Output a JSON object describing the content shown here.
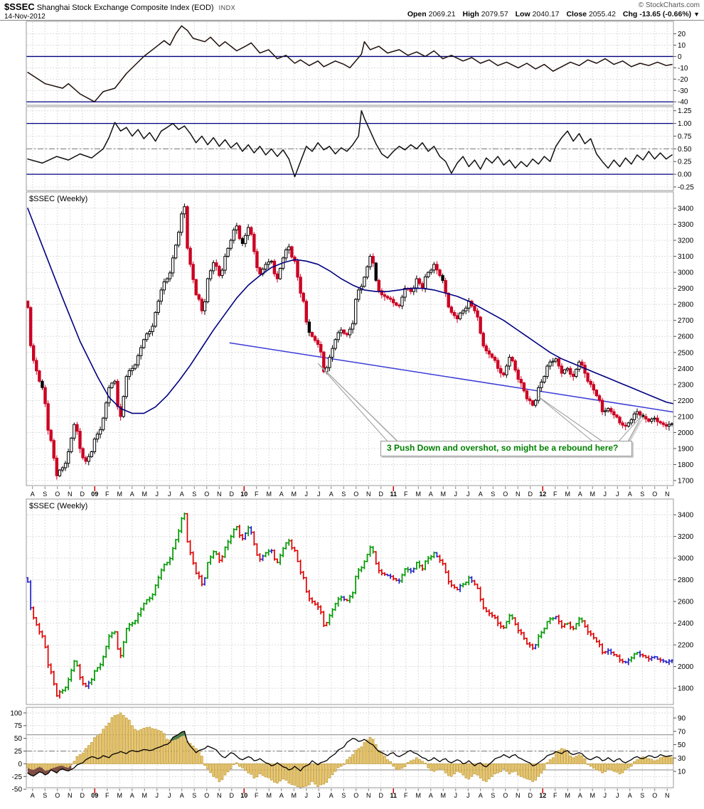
{
  "header": {
    "symbol": "$SSEC",
    "title": "Shanghai Stock Exchange Composite Index (EOD)",
    "exchange": "INDX",
    "date": "14-Nov-2012",
    "copyright": "© StockCharts.com",
    "quote": {
      "open_label": "Open",
      "open": "2069.21",
      "high_label": "High",
      "high": "2079.57",
      "low_label": "Low",
      "low": "2040.17",
      "close_label": "Close",
      "close": "2055.42",
      "chg_label": "Chg",
      "chg": "-13.65 (-0.66%)",
      "dropdown": "▼"
    }
  },
  "axis": {
    "months": [
      "A",
      "S",
      "O",
      "N",
      "D",
      "09",
      "F",
      "M",
      "A",
      "M",
      "J",
      "J",
      "A",
      "S",
      "O",
      "N",
      "D",
      "10",
      "F",
      "M",
      "A",
      "M",
      "J",
      "J",
      "A",
      "S",
      "O",
      "N",
      "D",
      "11",
      "F",
      "M",
      "A",
      "M",
      "J",
      "J",
      "A",
      "S",
      "O",
      "N",
      "D",
      "12",
      "F",
      "M",
      "A",
      "M",
      "J",
      "J",
      "A",
      "S",
      "O",
      "N"
    ],
    "year_idx": [
      5,
      17,
      29,
      41
    ]
  },
  "colors": {
    "candle_up": "#ffffff",
    "candle_down": "#cc0022",
    "candle_stroke": "#000000",
    "ma_line": "#000080",
    "trendline": "#3c3cd8",
    "ref_line": "#000080",
    "elder_up": "#009900",
    "elder_down": "#dd0000",
    "elder_neutral": "#2222cc",
    "hist_fill": "#edcb71",
    "hist_stroke": "#bf9a3a",
    "green_fill": "#4d7d4d",
    "red_fill": "#7d4d44",
    "osc1_line": "#1d0f0a",
    "osc2_line": "#111111",
    "breadth_line": "#000000",
    "annotation_green": "#008000",
    "chg_red": "#990000"
  },
  "chart_data": [
    {
      "id": "panel1-oscillator",
      "type": "line",
      "ylim": [
        -43,
        31
      ],
      "ticks": [
        20,
        10,
        0,
        -10,
        -20,
        -30,
        -40
      ],
      "tick_labels": [
        "20",
        "10",
        "0",
        "-10",
        "-20",
        "-30",
        "-40"
      ],
      "hlines": [
        0,
        -40
      ],
      "x": [
        0,
        6,
        12,
        14,
        18,
        23,
        26,
        30,
        34,
        40,
        44,
        47,
        49,
        51,
        53,
        55,
        57,
        61,
        63,
        66,
        68,
        72,
        75,
        77,
        80,
        83,
        86,
        89,
        92,
        94,
        97,
        100,
        102,
        106,
        109,
        111,
        115,
        116,
        118,
        121,
        124,
        128,
        131,
        134,
        137,
        140,
        143,
        146,
        150,
        153,
        156,
        159,
        162,
        165,
        169,
        172,
        175,
        178,
        181,
        184,
        187,
        190,
        193,
        196,
        199,
        202,
        205,
        208,
        211,
        214,
        217,
        220,
        222
      ],
      "y": [
        -14,
        -24,
        -28,
        -24,
        -33,
        -40,
        -31,
        -28,
        -15,
        0,
        8,
        14,
        10,
        20,
        27,
        23,
        16,
        13,
        17,
        9,
        13,
        5,
        9,
        12,
        3,
        6,
        -2,
        1,
        -6,
        -3,
        -8,
        -4,
        -9,
        -4,
        -7,
        -10,
        2,
        13,
        6,
        9,
        3,
        6,
        1,
        4,
        0,
        5,
        -2,
        1,
        -4,
        -1,
        -6,
        -3,
        -8,
        -5,
        -10,
        -6,
        -11,
        -7,
        -13,
        -9,
        -5,
        -8,
        -3,
        -6,
        -2,
        -7,
        -4,
        -9,
        -6,
        -8,
        -5,
        -8,
        -7
      ]
    },
    {
      "id": "panel2-oscillator",
      "type": "line",
      "ylim": [
        -0.32,
        1.33
      ],
      "ticks": [
        1.25,
        1.0,
        0.75,
        0.5,
        0.25,
        0.0,
        -0.25
      ],
      "tick_labels": [
        "1.25",
        "1.00",
        "0.75",
        "0.50",
        "0.25",
        "0.00",
        "-0.25"
      ],
      "hlines": [
        1.0,
        0.0
      ],
      "dashdot": [
        0.5
      ],
      "x": [
        0,
        5,
        10,
        14,
        18,
        22,
        26,
        28,
        30,
        32,
        34,
        36,
        38,
        40,
        42,
        44,
        46,
        48,
        50,
        52,
        54,
        56,
        58,
        60,
        62,
        64,
        66,
        68,
        70,
        72,
        74,
        76,
        78,
        80,
        82,
        84,
        86,
        88,
        90,
        92,
        94,
        96,
        98,
        100,
        102,
        104,
        106,
        108,
        110,
        112,
        114,
        115,
        116,
        118,
        120,
        122,
        124,
        126,
        128,
        130,
        132,
        134,
        136,
        138,
        140,
        142,
        144,
        146,
        148,
        150,
        152,
        154,
        156,
        158,
        160,
        162,
        164,
        166,
        168,
        170,
        172,
        174,
        176,
        178,
        180,
        182,
        184,
        186,
        188,
        190,
        192,
        194,
        196,
        198,
        200,
        202,
        204,
        206,
        208,
        210,
        212,
        214,
        216,
        218,
        220,
        222
      ],
      "y": [
        0.3,
        0.22,
        0.35,
        0.28,
        0.4,
        0.32,
        0.5,
        0.72,
        1.02,
        0.85,
        0.92,
        0.75,
        0.88,
        0.7,
        0.82,
        0.65,
        0.85,
        0.92,
        1.0,
        0.88,
        0.95,
        0.8,
        0.62,
        0.75,
        0.58,
        0.72,
        0.55,
        0.68,
        0.52,
        0.62,
        0.45,
        0.58,
        0.42,
        0.55,
        0.38,
        0.5,
        0.35,
        0.48,
        0.3,
        -0.05,
        0.25,
        0.55,
        0.45,
        0.62,
        0.48,
        0.55,
        0.4,
        0.52,
        0.45,
        0.58,
        0.75,
        1.25,
        1.1,
        0.85,
        0.6,
        0.4,
        0.32,
        0.45,
        0.55,
        0.48,
        0.58,
        0.5,
        0.62,
        0.45,
        0.55,
        0.35,
        0.25,
        0.02,
        0.22,
        0.35,
        0.15,
        0.28,
        0.1,
        0.32,
        0.22,
        0.35,
        0.18,
        0.28,
        0.12,
        0.25,
        0.15,
        0.3,
        0.2,
        0.35,
        0.25,
        0.55,
        0.72,
        0.85,
        0.65,
        0.8,
        0.6,
        0.7,
        0.4,
        0.25,
        0.12,
        0.28,
        0.15,
        0.32,
        0.2,
        0.38,
        0.28,
        0.45,
        0.3,
        0.42,
        0.3,
        0.38
      ]
    },
    {
      "id": "main-price-chart",
      "type": "candlestick",
      "label": "$SSEC (Weekly)",
      "ylim": [
        1669,
        3502
      ],
      "ticks": [
        3400,
        3300,
        3200,
        3100,
        3000,
        2900,
        2800,
        2700,
        2600,
        2500,
        2400,
        2300,
        2200,
        2100,
        2000,
        1900,
        1800,
        1700
      ],
      "tick_labels": [
        "3400",
        "3300",
        "3200",
        "3100",
        "3000",
        "2900",
        "2800",
        "2700",
        "2600",
        "2500",
        "2400",
        "2300",
        "2200",
        "2100",
        "2000",
        "1900",
        "1800",
        "1700"
      ],
      "closes_biweekly": [
        2780,
        2450,
        2320,
        2180,
        1950,
        1730,
        1780,
        1880,
        2050,
        1900,
        1820,
        1880,
        1990,
        2090,
        2280,
        2320,
        2100,
        2350,
        2400,
        2480,
        2580,
        2630,
        2750,
        2890,
        2960,
        3090,
        3250,
        3410,
        3050,
        2860,
        2760,
        2960,
        3060,
        2980,
        3100,
        3200,
        3290,
        3180,
        3280,
        3130,
        2990,
        3050,
        3070,
        2960,
        3090,
        3160,
        3070,
        2870,
        2690,
        2600,
        2550,
        2380,
        2470,
        2580,
        2640,
        2610,
        2680,
        2890,
        2970,
        3100,
        2950,
        2860,
        2840,
        2810,
        2790,
        2900,
        2880,
        2960,
        2900,
        3000,
        3050,
        2980,
        2870,
        2750,
        2710,
        2760,
        2820,
        2760,
        2620,
        2510,
        2470,
        2400,
        2360,
        2470,
        2390,
        2310,
        2210,
        2170,
        2280,
        2350,
        2440,
        2460,
        2370,
        2400,
        2350,
        2440,
        2370,
        2300,
        2230,
        2130,
        2150,
        2110,
        2060,
        2040,
        2080,
        2130,
        2100,
        2070,
        2090,
        2060,
        2040,
        2055
      ],
      "ma": {
        "x": [
          0,
          6,
          12,
          18,
          24,
          28,
          32,
          36,
          40,
          44,
          48,
          52,
          56,
          60,
          64,
          68,
          72,
          76,
          80,
          84,
          88,
          92,
          96,
          100,
          104,
          108,
          112,
          116,
          120,
          124,
          128,
          132,
          136,
          140,
          144,
          148,
          152,
          156,
          160,
          164,
          168,
          172,
          176,
          180,
          184,
          188,
          192,
          196,
          200,
          204,
          208,
          212,
          216,
          220,
          223
        ],
        "y": [
          3400,
          3120,
          2840,
          2570,
          2350,
          2220,
          2150,
          2120,
          2120,
          2160,
          2230,
          2320,
          2420,
          2530,
          2640,
          2740,
          2840,
          2920,
          2980,
          3030,
          3060,
          3080,
          3070,
          3050,
          3010,
          2960,
          2920,
          2890,
          2880,
          2880,
          2890,
          2900,
          2900,
          2890,
          2870,
          2850,
          2820,
          2780,
          2740,
          2700,
          2650,
          2600,
          2550,
          2500,
          2460,
          2430,
          2400,
          2370,
          2340,
          2310,
          2280,
          2250,
          2220,
          2190,
          2180
        ]
      },
      "trendline": {
        "x1": 70,
        "v1": 2560,
        "x2": 223,
        "v2": 2128
      },
      "annotation": {
        "text": "3 Push Down and overshot, so might be a rebound here?"
      }
    },
    {
      "id": "elder-impulse-chart",
      "type": "ohlc",
      "label": "$SSEC (Weekly)",
      "source": "same weekly closes as main-price-chart",
      "ylim": [
        1650,
        3545
      ],
      "ticks": [
        3400,
        3200,
        3000,
        2800,
        2600,
        2400,
        2200,
        2000,
        1800
      ],
      "tick_labels": [
        "3400",
        "3200",
        "3000",
        "2800",
        "2600",
        "2400",
        "2200",
        "2000",
        "1800"
      ]
    },
    {
      "id": "breadth-histogram",
      "type": "histogram_line",
      "ylim": [
        -47,
        111
      ],
      "left_ticks": [
        100,
        75,
        50,
        25,
        0,
        -25,
        -50
      ],
      "left_tick_labels": [
        "100",
        "75",
        "50",
        "25",
        "0",
        "-25",
        "-50"
      ],
      "right_axis": {
        "ylim": [
          -14.5,
          106
        ],
        "ticks": [
          90,
          70,
          50,
          30,
          10
        ],
        "tick_labels": [
          "90",
          "70",
          "50",
          "30",
          "10"
        ]
      },
      "hlines_solid": [
        57,
        -12
      ],
      "dashdot": [
        25
      ],
      "bars": [
        -8,
        -12,
        -6,
        -14,
        -10,
        -6,
        -4,
        -8,
        5,
        18,
        30,
        42,
        55,
        68,
        80,
        95,
        100,
        90,
        75,
        65,
        70,
        72,
        68,
        64,
        48,
        46,
        50,
        56,
        40,
        30,
        15,
        -10,
        -25,
        -35,
        -22,
        -10,
        2,
        -8,
        -18,
        -28,
        -20,
        -26,
        -32,
        -38,
        -30,
        -38,
        -42,
        -48,
        -44,
        -35,
        -45,
        -40,
        -28,
        -15,
        -5,
        8,
        18,
        30,
        42,
        52,
        38,
        22,
        8,
        -5,
        -12,
        -6,
        6,
        12,
        5,
        -8,
        -15,
        -10,
        -18,
        -25,
        -15,
        -22,
        -30,
        -20,
        -28,
        -35,
        -25,
        -18,
        -10,
        -20,
        -15,
        -25,
        -30,
        -35,
        -25,
        -12,
        8,
        22,
        30,
        25,
        12,
        18,
        10,
        -5,
        -12,
        -18,
        -10,
        -15,
        -20,
        -12,
        -5,
        8,
        14,
        10,
        6,
        12,
        15,
        12
      ],
      "line": [
        -18,
        -24,
        -16,
        -22,
        -12,
        -18,
        -10,
        -14,
        -8,
        0,
        8,
        14,
        10,
        16,
        12,
        20,
        24,
        20,
        26,
        24,
        28,
        26,
        30,
        34,
        38,
        52,
        58,
        64,
        35,
        22,
        28,
        35,
        30,
        20,
        12,
        22,
        15,
        8,
        14,
        6,
        10,
        2,
        -4,
        2,
        -6,
        -12,
        -5,
        -14,
        -4,
        6,
        -2,
        4,
        12,
        20,
        30,
        42,
        50,
        44,
        48,
        40,
        30,
        22,
        16,
        22,
        14,
        20,
        26,
        20,
        12,
        6,
        12,
        4,
        10,
        2,
        8,
        0,
        6,
        -4,
        2,
        -6,
        4,
        12,
        18,
        12,
        18,
        10,
        4,
        -4,
        2,
        10,
        18,
        24,
        20,
        26,
        18,
        22,
        14,
        8,
        14,
        6,
        12,
        4,
        10,
        2,
        8,
        14,
        10,
        16,
        12,
        18,
        14,
        16
      ],
      "green_range_weeks": [
        47,
        57
      ],
      "red_range_weeks": [
        0,
        15
      ]
    }
  ]
}
